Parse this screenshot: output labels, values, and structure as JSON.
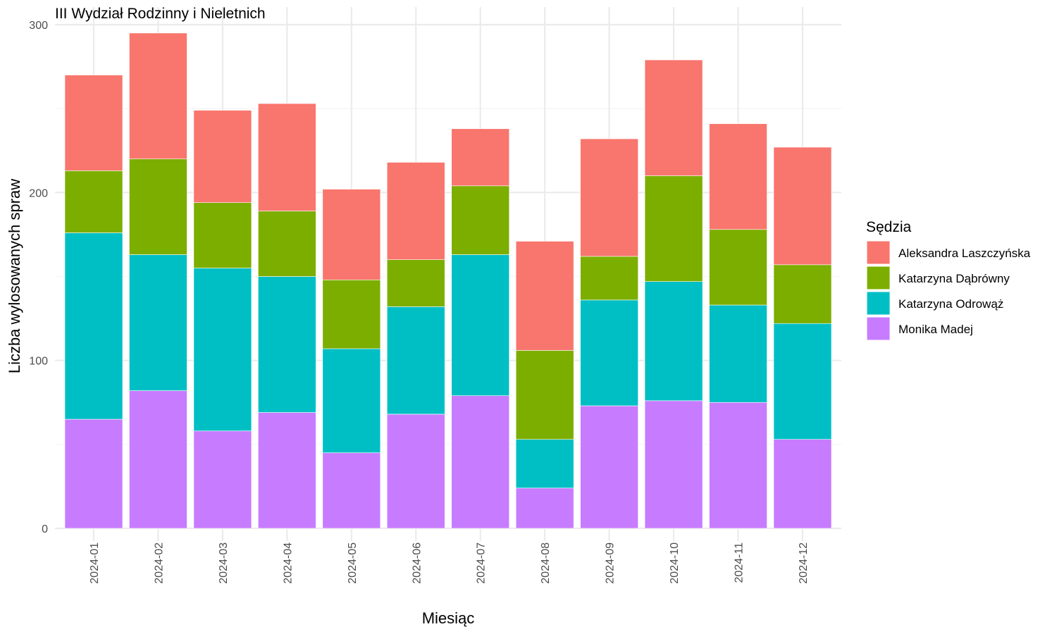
{
  "chart_data": {
    "type": "bar",
    "stacked": true,
    "title": "III Wydział Rodzinny i Nieletnich",
    "xlabel": "Miesiąc",
    "ylabel": "Liczba wylosowanych spraw",
    "ylim": [
      0,
      300
    ],
    "yticks": [
      0,
      100,
      200,
      300
    ],
    "grid": true,
    "legend_position": "right",
    "legend_title": "Sędzia",
    "categories": [
      "2024-01",
      "2024-02",
      "2024-03",
      "2024-04",
      "2024-05",
      "2024-06",
      "2024-07",
      "2024-08",
      "2024-09",
      "2024-10",
      "2024-11",
      "2024-12"
    ],
    "series": [
      {
        "name": "Aleksandra Laszczyńska",
        "color": "#F8766D",
        "values": [
          57,
          75,
          55,
          64,
          54,
          58,
          34,
          65,
          70,
          69,
          63,
          70
        ]
      },
      {
        "name": "Katarzyna Dąbrówny",
        "color": "#7CAE00",
        "values": [
          37,
          57,
          39,
          39,
          41,
          28,
          41,
          53,
          26,
          63,
          45,
          35
        ]
      },
      {
        "name": "Katarzyna Odrowąż",
        "color": "#00BFC4",
        "values": [
          111,
          81,
          97,
          81,
          62,
          64,
          84,
          29,
          63,
          71,
          58,
          69
        ]
      },
      {
        "name": "Monika Madej",
        "color": "#C77CFF",
        "values": [
          65,
          82,
          58,
          69,
          45,
          68,
          79,
          24,
          73,
          76,
          75,
          53
        ]
      }
    ]
  }
}
